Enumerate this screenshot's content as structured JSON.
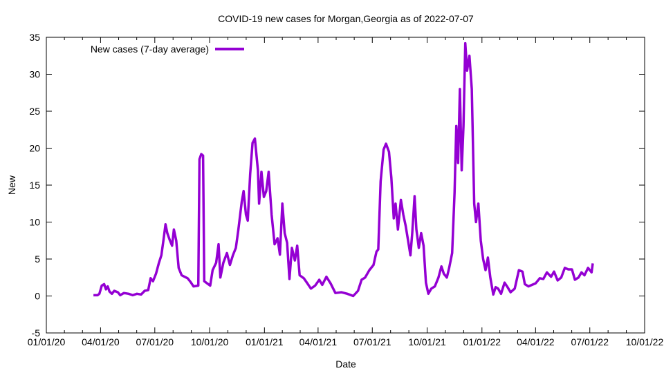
{
  "chart_data": {
    "type": "line",
    "title": "COVID-19 new cases for Morgan,Georgia as of 2022-07-07",
    "xlabel": "Date",
    "ylabel": "New",
    "xlim": [
      "2020-01-01",
      "2022-10-01"
    ],
    "ylim": [
      -5,
      35
    ],
    "yticks": [
      -5,
      0,
      5,
      10,
      15,
      20,
      25,
      30,
      35
    ],
    "xticks": [
      {
        "date": "2020-01-01",
        "label": "01/01/20"
      },
      {
        "date": "2020-04-01",
        "label": "04/01/20"
      },
      {
        "date": "2020-07-01",
        "label": "07/01/20"
      },
      {
        "date": "2020-10-01",
        "label": "10/01/20"
      },
      {
        "date": "2021-01-01",
        "label": "01/01/21"
      },
      {
        "date": "2021-04-01",
        "label": "04/01/21"
      },
      {
        "date": "2021-07-01",
        "label": "07/01/21"
      },
      {
        "date": "2021-10-01",
        "label": "10/01/21"
      },
      {
        "date": "2022-01-01",
        "label": "01/01/22"
      },
      {
        "date": "2022-04-01",
        "label": "04/01/22"
      },
      {
        "date": "2022-07-01",
        "label": "07/01/22"
      },
      {
        "date": "2022-10-01",
        "label": "10/01/22"
      }
    ],
    "grid": false,
    "legend_position": "top-left",
    "series": [
      {
        "name": "New cases (7-day average)",
        "color": "#9400d3",
        "points": [
          [
            "2020-03-20",
            0.1
          ],
          [
            "2020-03-27",
            0.1
          ],
          [
            "2020-03-30",
            0.3
          ],
          [
            "2020-04-03",
            1.4
          ],
          [
            "2020-04-07",
            1.6
          ],
          [
            "2020-04-10",
            0.9
          ],
          [
            "2020-04-13",
            1.3
          ],
          [
            "2020-04-16",
            0.6
          ],
          [
            "2020-04-20",
            0.3
          ],
          [
            "2020-04-24",
            0.7
          ],
          [
            "2020-04-30",
            0.5
          ],
          [
            "2020-05-04",
            0.1
          ],
          [
            "2020-05-10",
            0.4
          ],
          [
            "2020-05-18",
            0.3
          ],
          [
            "2020-05-25",
            0.1
          ],
          [
            "2020-06-01",
            0.3
          ],
          [
            "2020-06-08",
            0.2
          ],
          [
            "2020-06-14",
            0.7
          ],
          [
            "2020-06-20",
            0.8
          ],
          [
            "2020-06-24",
            2.4
          ],
          [
            "2020-06-28",
            2.0
          ],
          [
            "2020-07-03",
            3.0
          ],
          [
            "2020-07-08",
            4.5
          ],
          [
            "2020-07-12",
            5.5
          ],
          [
            "2020-07-16",
            7.8
          ],
          [
            "2020-07-19",
            9.7
          ],
          [
            "2020-07-22",
            8.5
          ],
          [
            "2020-07-26",
            7.6
          ],
          [
            "2020-07-30",
            6.8
          ],
          [
            "2020-08-02",
            9.0
          ],
          [
            "2020-08-06",
            7.5
          ],
          [
            "2020-08-10",
            3.8
          ],
          [
            "2020-08-15",
            2.8
          ],
          [
            "2020-08-20",
            2.6
          ],
          [
            "2020-08-25",
            2.4
          ],
          [
            "2020-08-30",
            1.9
          ],
          [
            "2020-09-04",
            1.3
          ],
          [
            "2020-09-12",
            1.4
          ],
          [
            "2020-09-14",
            18.5
          ],
          [
            "2020-09-17",
            19.2
          ],
          [
            "2020-09-20",
            19.0
          ],
          [
            "2020-09-22",
            2.0
          ],
          [
            "2020-09-27",
            1.7
          ],
          [
            "2020-10-02",
            1.4
          ],
          [
            "2020-10-06",
            3.5
          ],
          [
            "2020-10-12",
            4.5
          ],
          [
            "2020-10-16",
            7.0
          ],
          [
            "2020-10-19",
            2.5
          ],
          [
            "2020-10-24",
            4.5
          ],
          [
            "2020-10-30",
            5.8
          ],
          [
            "2020-11-04",
            4.2
          ],
          [
            "2020-11-09",
            5.5
          ],
          [
            "2020-11-14",
            6.5
          ],
          [
            "2020-11-18",
            8.8
          ],
          [
            "2020-11-24",
            12.8
          ],
          [
            "2020-11-27",
            14.2
          ],
          [
            "2020-12-01",
            11.0
          ],
          [
            "2020-12-04",
            10.2
          ],
          [
            "2020-12-08",
            16.5
          ],
          [
            "2020-12-12",
            20.7
          ],
          [
            "2020-12-16",
            21.3
          ],
          [
            "2020-12-21",
            17.0
          ],
          [
            "2020-12-23",
            12.5
          ],
          [
            "2020-12-27",
            16.8
          ],
          [
            "2020-12-31",
            13.4
          ],
          [
            "2021-01-04",
            14.2
          ],
          [
            "2021-01-08",
            16.8
          ],
          [
            "2021-01-13",
            11.0
          ],
          [
            "2021-01-18",
            7.0
          ],
          [
            "2021-01-23",
            7.8
          ],
          [
            "2021-01-27",
            5.6
          ],
          [
            "2021-01-31",
            12.5
          ],
          [
            "2021-02-04",
            8.5
          ],
          [
            "2021-02-08",
            7.2
          ],
          [
            "2021-02-12",
            2.3
          ],
          [
            "2021-02-16",
            6.5
          ],
          [
            "2021-02-21",
            4.8
          ],
          [
            "2021-02-25",
            6.8
          ],
          [
            "2021-03-01",
            2.8
          ],
          [
            "2021-03-08",
            2.4
          ],
          [
            "2021-03-14",
            1.7
          ],
          [
            "2021-03-20",
            1.0
          ],
          [
            "2021-03-27",
            1.4
          ],
          [
            "2021-04-03",
            2.2
          ],
          [
            "2021-04-08",
            1.5
          ],
          [
            "2021-04-15",
            2.6
          ],
          [
            "2021-04-22",
            1.7
          ],
          [
            "2021-04-30",
            0.4
          ],
          [
            "2021-05-10",
            0.5
          ],
          [
            "2021-05-20",
            0.3
          ],
          [
            "2021-05-30",
            0.0
          ],
          [
            "2021-06-07",
            0.7
          ],
          [
            "2021-06-13",
            2.2
          ],
          [
            "2021-06-19",
            2.5
          ],
          [
            "2021-06-26",
            3.5
          ],
          [
            "2021-07-03",
            4.2
          ],
          [
            "2021-07-08",
            6.0
          ],
          [
            "2021-07-11",
            6.3
          ],
          [
            "2021-07-15",
            15.5
          ],
          [
            "2021-07-20",
            19.8
          ],
          [
            "2021-07-24",
            20.6
          ],
          [
            "2021-07-29",
            19.5
          ],
          [
            "2021-08-02",
            16.0
          ],
          [
            "2021-08-06",
            10.5
          ],
          [
            "2021-08-09",
            12.5
          ],
          [
            "2021-08-13",
            9.0
          ],
          [
            "2021-08-18",
            13.0
          ],
          [
            "2021-08-22",
            11.0
          ],
          [
            "2021-08-26",
            9.5
          ],
          [
            "2021-08-30",
            7.5
          ],
          [
            "2021-09-03",
            5.5
          ],
          [
            "2021-09-06",
            8.5
          ],
          [
            "2021-09-10",
            13.5
          ],
          [
            "2021-09-13",
            9.0
          ],
          [
            "2021-09-17",
            6.5
          ],
          [
            "2021-09-21",
            8.5
          ],
          [
            "2021-09-25",
            6.8
          ],
          [
            "2021-09-29",
            1.8
          ],
          [
            "2021-10-03",
            0.3
          ],
          [
            "2021-10-08",
            1.0
          ],
          [
            "2021-10-14",
            1.3
          ],
          [
            "2021-10-20",
            2.5
          ],
          [
            "2021-10-25",
            4.0
          ],
          [
            "2021-10-29",
            3.0
          ],
          [
            "2021-11-03",
            2.5
          ],
          [
            "2021-11-07",
            3.8
          ],
          [
            "2021-11-12",
            5.8
          ],
          [
            "2021-11-16",
            14.0
          ],
          [
            "2021-11-19",
            23.0
          ],
          [
            "2021-11-22",
            18.0
          ],
          [
            "2021-11-25",
            28.0
          ],
          [
            "2021-11-28",
            17.0
          ],
          [
            "2021-12-01",
            23.0
          ],
          [
            "2021-12-04",
            34.2
          ],
          [
            "2021-12-07",
            30.5
          ],
          [
            "2021-12-11",
            32.5
          ],
          [
            "2021-12-15",
            28.0
          ],
          [
            "2021-12-19",
            12.5
          ],
          [
            "2021-12-22",
            10.0
          ],
          [
            "2021-12-26",
            12.5
          ],
          [
            "2021-12-30",
            7.5
          ],
          [
            "2022-01-03",
            5.0
          ],
          [
            "2022-01-07",
            3.5
          ],
          [
            "2022-01-11",
            5.2
          ],
          [
            "2022-01-15",
            2.5
          ],
          [
            "2022-01-20",
            0.2
          ],
          [
            "2022-01-24",
            1.2
          ],
          [
            "2022-01-28",
            1.0
          ],
          [
            "2022-02-02",
            0.3
          ],
          [
            "2022-02-08",
            1.8
          ],
          [
            "2022-02-13",
            1.2
          ],
          [
            "2022-02-18",
            0.5
          ],
          [
            "2022-02-25",
            1.0
          ],
          [
            "2022-03-04",
            3.5
          ],
          [
            "2022-03-10",
            3.3
          ],
          [
            "2022-03-14",
            1.6
          ],
          [
            "2022-03-20",
            1.3
          ],
          [
            "2022-03-26",
            1.5
          ],
          [
            "2022-04-01",
            1.7
          ],
          [
            "2022-04-08",
            2.4
          ],
          [
            "2022-04-14",
            2.3
          ],
          [
            "2022-04-20",
            3.2
          ],
          [
            "2022-04-27",
            2.6
          ],
          [
            "2022-05-02",
            3.3
          ],
          [
            "2022-05-08",
            2.1
          ],
          [
            "2022-05-14",
            2.5
          ],
          [
            "2022-05-20",
            3.8
          ],
          [
            "2022-05-26",
            3.6
          ],
          [
            "2022-06-01",
            3.6
          ],
          [
            "2022-06-06",
            2.2
          ],
          [
            "2022-06-12",
            2.5
          ],
          [
            "2022-06-17",
            3.2
          ],
          [
            "2022-06-22",
            2.8
          ],
          [
            "2022-06-28",
            3.8
          ],
          [
            "2022-07-04",
            3.2
          ],
          [
            "2022-07-06",
            4.4
          ]
        ]
      }
    ]
  }
}
